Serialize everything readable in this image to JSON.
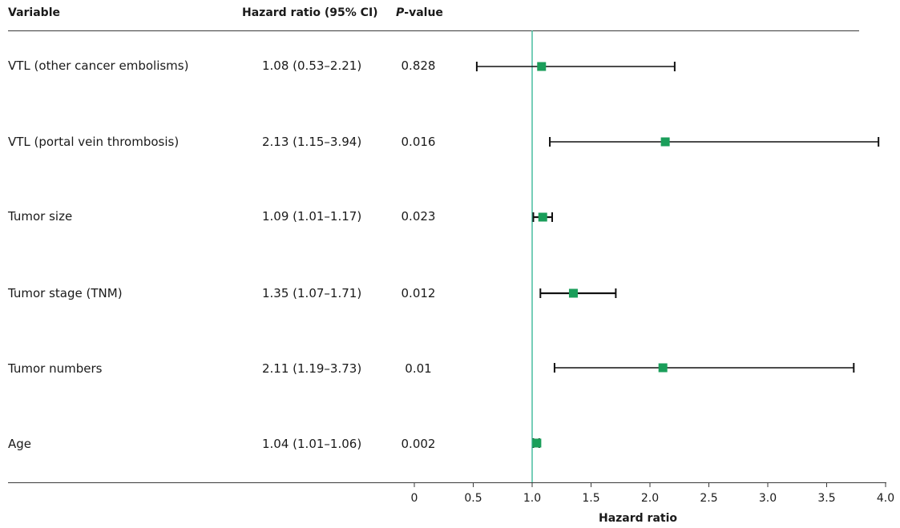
{
  "header": {
    "variable": "Variable",
    "hazard_ratio": "Hazard ratio (95% CI)",
    "p_value_italic": "P",
    "p_value_rest": "-value"
  },
  "rows": [
    {
      "label": "VTL (other cancer embolisms)",
      "hr_text": "1.08 (0.53–2.21)",
      "p": "0.828"
    },
    {
      "label": "VTL (portal vein thrombosis)",
      "hr_text": "2.13 (1.15–3.94)",
      "p": "0.016"
    },
    {
      "label": "Tumor size",
      "hr_text": "1.09 (1.01–1.17)",
      "p": "0.023"
    },
    {
      "label": "Tumor stage (TNM)",
      "hr_text": "1.35 (1.07–1.71)",
      "p": "0.012"
    },
    {
      "label": "Tumor numbers",
      "hr_text": "2.11 (1.19–3.73)",
      "p": "0.01"
    },
    {
      "label": "Age",
      "hr_text": "1.04 (1.01–1.06)",
      "p": "0.002"
    }
  ],
  "chart_data": {
    "type": "forest",
    "xlabel": "Hazard ratio",
    "xlim": [
      0,
      4.0
    ],
    "xticks": [
      "0",
      "0.5",
      "1.0",
      "1.5",
      "2.0",
      "2.5",
      "3.0",
      "3.5",
      "4.0"
    ],
    "reference_line": 1.0,
    "points": [
      {
        "name": "VTL (other cancer embolisms)",
        "hr": 1.08,
        "lo": 0.53,
        "hi": 2.21
      },
      {
        "name": "VTL (portal vein thrombosis)",
        "hr": 2.13,
        "lo": 1.15,
        "hi": 3.94
      },
      {
        "name": "Tumor size",
        "hr": 1.09,
        "lo": 1.01,
        "hi": 1.17
      },
      {
        "name": "Tumor stage (TNM)",
        "hr": 1.35,
        "lo": 1.07,
        "hi": 1.71
      },
      {
        "name": "Tumor numbers",
        "hr": 2.11,
        "lo": 1.19,
        "hi": 3.73
      },
      {
        "name": "Age",
        "hr": 1.04,
        "lo": 1.01,
        "hi": 1.06
      }
    ],
    "colors": {
      "marker": "#1a9e5a",
      "reference": "#3cb89a",
      "whisker": "#111111"
    }
  }
}
